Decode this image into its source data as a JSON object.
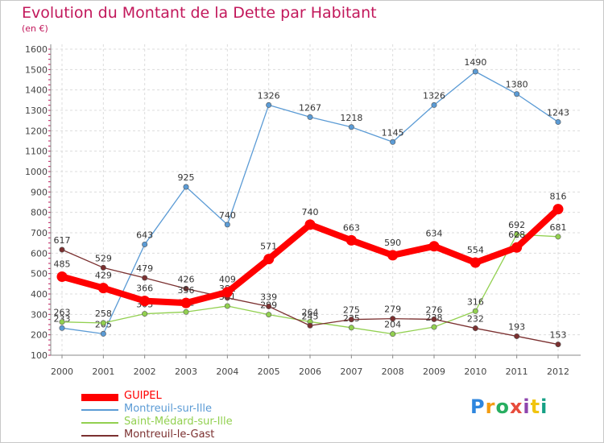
{
  "title": "Evolution du Montant de la Dette par Habitant",
  "subtitle": "(en €)",
  "logo": {
    "text": "Proxiti",
    "colors": [
      "#2e86de",
      "#f39c12",
      "#27ae60",
      "#e74c3c",
      "#8e44ad",
      "#f1c40f",
      "#16a085"
    ]
  },
  "chart_data": {
    "type": "line",
    "x": [
      "2000",
      "2001",
      "2002",
      "2003",
      "2004",
      "2005",
      "2006",
      "2007",
      "2008",
      "2009",
      "2010",
      "2011",
      "2012"
    ],
    "ylim": [
      100,
      1600
    ],
    "yticks": [
      100,
      200,
      300,
      400,
      500,
      600,
      700,
      800,
      900,
      1000,
      1100,
      1200,
      1300,
      1400,
      1500,
      1600
    ],
    "grid": true,
    "legend_position": "bottom-left",
    "series": [
      {
        "name": "Montreuil-sur-Ille",
        "color": "#5b9bd5",
        "values": [
          233,
          205,
          643,
          925,
          740,
          1326,
          1267,
          1218,
          1145,
          1326,
          1490,
          1380,
          1243
        ]
      },
      {
        "name": "Saint-Médard-sur-Ille",
        "color": "#92d050",
        "values": [
          263,
          258,
          303,
          312,
          341,
          299,
          264,
          235,
          204,
          238,
          316,
          692,
          681
        ]
      },
      {
        "name": "Montreuil-le-Gast",
        "color": "#7b3030",
        "values": [
          617,
          529,
          479,
          426,
          381,
          339,
          245,
          275,
          279,
          276,
          232,
          193,
          153
        ]
      },
      {
        "name": "GUIPEL",
        "color": "#ff0000",
        "values": [
          485,
          429,
          366,
          356,
          409,
          571,
          740,
          663,
          590,
          634,
          554,
          628,
          816
        ]
      }
    ]
  }
}
